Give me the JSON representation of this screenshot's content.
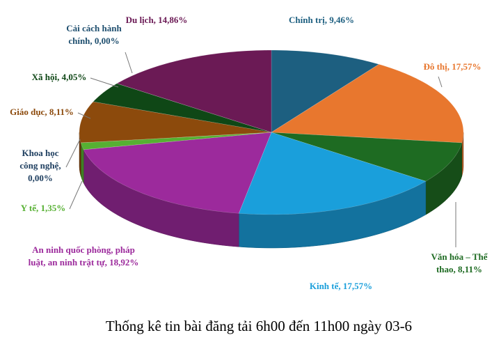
{
  "chart_data": {
    "type": "pie",
    "title": "Thống kê tin bài đăng tải 6h00 đến 11h00 ngày 03-6",
    "values": [
      9.46,
      17.57,
      8.11,
      17.57,
      18.92,
      1.35,
      0,
      8.11,
      4.05,
      0,
      14.86
    ],
    "value_labels": [
      "Chính trị, 9,46%",
      "Đô thị, 17,57%",
      "Văn hóa – Thể\nthao, 8,11%",
      "Kinh tế, 17,57%",
      "An ninh quốc phòng, pháp\nluật, an ninh trật tự, 18,92%",
      "Y tế, 1,35%",
      "Khoa học\ncông nghệ,\n0,00%",
      "Giáo dục, 8,11%",
      "Xã hội, 4,05%",
      "Cải cách hành\nchính, 0,00%",
      "Du lịch, 14,86%"
    ],
    "colors": [
      "#1d5f80",
      "#e8772e",
      "#1e6b22",
      "#1a9fdb",
      "#9c2a9c",
      "#56b032",
      "#1f3f60",
      "#8c4a0c",
      "#0f4716",
      "#1f4f6f",
      "#6b1a55"
    ]
  }
}
